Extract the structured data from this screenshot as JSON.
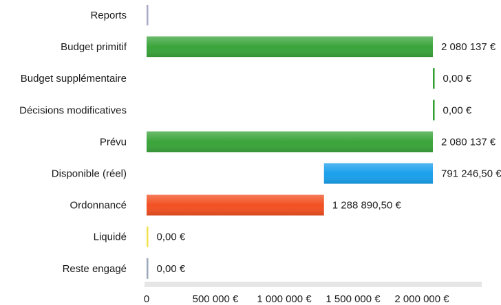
{
  "chart_data": {
    "type": "bar",
    "orientation": "horizontal",
    "categories": [
      "Reports",
      "Budget primitif",
      "Budget supplémentaire",
      "Décisions modificatives",
      "Prévu",
      "Disponible (réel)",
      "Ordonnancé",
      "Liquidé",
      "Reste engagé"
    ],
    "values": [
      0,
      2080137,
      0,
      0,
      2080137,
      791246.5,
      1288890.5,
      0,
      0
    ],
    "bar_start": [
      0,
      0,
      2080137,
      2080137,
      0,
      1288890.5,
      0,
      0,
      0
    ],
    "value_labels": [
      "",
      "2 080 137 €",
      "0,00 €",
      "0,00 €",
      "2 080 137 €",
      "791 246,50 €",
      "1 288 890,50 €",
      "0,00 €",
      "0,00 €"
    ],
    "colors": [
      "#a9a9c8",
      "#3aa43a",
      "#2e9e2e",
      "#2e9e2e",
      "#3aa43a",
      "#1aa0ec",
      "#f25022",
      "#f0e24a",
      "#9aa8b8"
    ],
    "x_ticks": [
      0,
      500000,
      1000000,
      1500000,
      2000000
    ],
    "x_tick_labels": [
      "0",
      "500 000 €",
      "1 000 000 €",
      "1 500 000 €",
      "2 000 000 €"
    ],
    "xlim": [
      0,
      2400000
    ],
    "grid": false,
    "title": "",
    "xlabel": "",
    "ylabel": ""
  }
}
